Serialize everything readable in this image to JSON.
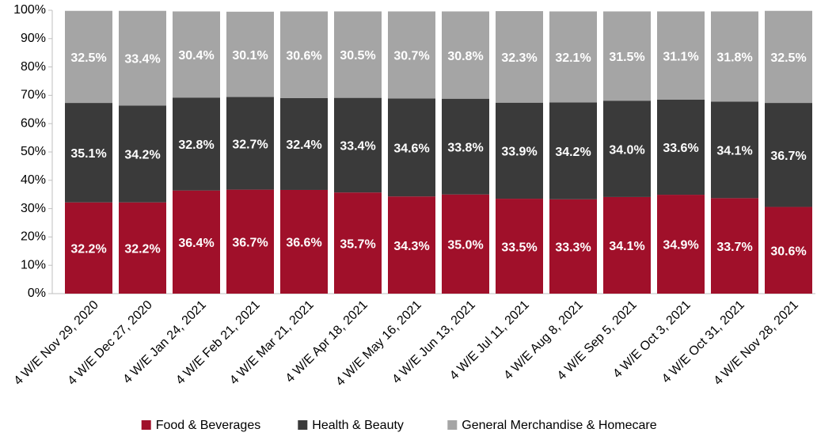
{
  "chart_data": {
    "type": "stacked_bar",
    "categories": [
      "4 W/E Nov 29, 2020",
      "4 W/E Dec 27, 2020",
      "4 W/E Jan 24, 2021",
      "4 W/E Feb 21, 2021",
      "4 W/E Mar 21, 2021",
      "4 W/E Apr 18, 2021",
      "4 W/E May 16, 2021",
      "4 W/E Jun 13, 2021",
      "4 W/E Jul 11, 2021",
      "4 W/E Aug 8, 2021",
      "4 W/E Sep 5, 2021",
      "4 W/E Oct 3, 2021",
      "4 W/E Oct 31, 2021",
      "4 W/E Nov 28, 2021"
    ],
    "series": [
      {
        "name": "Food & Beverages",
        "color": "#a0102a",
        "values": [
          32.2,
          32.2,
          36.4,
          36.7,
          36.6,
          35.7,
          34.3,
          35.0,
          33.5,
          33.3,
          34.1,
          34.9,
          33.7,
          30.6
        ],
        "value_labels": [
          "32.2%",
          "32.2%",
          "36.4%",
          "36.7%",
          "36.6%",
          "35.7%",
          "34.3%",
          "35.0%",
          "33.5%",
          "33.3%",
          "34.1%",
          "34.9%",
          "33.7%",
          "30.6%"
        ]
      },
      {
        "name": "Health & Beauty",
        "color": "#3a3a3a",
        "values": [
          35.1,
          34.2,
          32.8,
          32.7,
          32.4,
          33.4,
          34.6,
          33.8,
          33.9,
          34.2,
          34.0,
          33.6,
          34.1,
          36.7
        ],
        "value_labels": [
          "35.1%",
          "34.2%",
          "32.8%",
          "32.7%",
          "32.4%",
          "33.4%",
          "34.6%",
          "33.8%",
          "33.9%",
          "34.2%",
          "34.0%",
          "33.6%",
          "34.1%",
          "36.7%"
        ]
      },
      {
        "name": "General Merchandise & Homecare",
        "color": "#a5a5a5",
        "values": [
          32.5,
          33.4,
          30.4,
          30.1,
          30.6,
          30.5,
          30.7,
          30.8,
          32.3,
          32.1,
          31.5,
          31.1,
          31.8,
          32.5
        ],
        "value_labels": [
          "32.5%",
          "33.4%",
          "30.4%",
          "30.1%",
          "30.6%",
          "30.5%",
          "30.7%",
          "30.8%",
          "32.3%",
          "32.1%",
          "31.5%",
          "31.1%",
          "31.8%",
          "32.5%"
        ]
      }
    ],
    "ylim": [
      0,
      100
    ],
    "yticks": [
      {
        "value": 0,
        "label": "0%"
      },
      {
        "value": 10,
        "label": "10%"
      },
      {
        "value": 20,
        "label": "20%"
      },
      {
        "value": 30,
        "label": "30%"
      },
      {
        "value": 40,
        "label": "40%"
      },
      {
        "value": 50,
        "label": "50%"
      },
      {
        "value": 60,
        "label": "60%"
      },
      {
        "value": 70,
        "label": "70%"
      },
      {
        "value": 80,
        "label": "80%"
      },
      {
        "value": 90,
        "label": "90%"
      },
      {
        "value": 100,
        "label": "100%"
      }
    ],
    "grid": false,
    "legend": "bottom"
  }
}
